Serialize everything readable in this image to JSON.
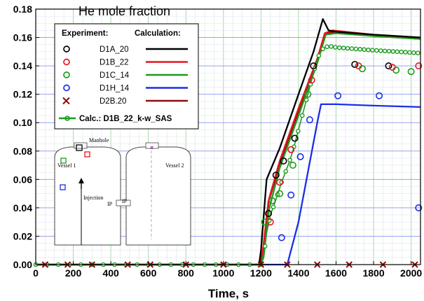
{
  "chart_data": {
    "type": "line",
    "title": "He mole fraction",
    "xlabel": "Time, s",
    "ylabel": "",
    "xlim": [
      0,
      2050
    ],
    "ylim": [
      0,
      0.18
    ],
    "xticks": [
      "0",
      "200",
      "400",
      "600",
      "800",
      "1000",
      "1200",
      "1400",
      "1600",
      "1800",
      "2000"
    ],
    "yticks": [
      "0.00",
      "0.02",
      "0.04",
      "0.06",
      "0.08",
      "0.10",
      "0.12",
      "0.14",
      "0.16",
      "0.18"
    ],
    "grid": true,
    "legend": {
      "placement": "top-left",
      "experiment_header": "Experiment:",
      "calculation_header": "Calculation:",
      "entries": [
        {
          "name": "D1A_20",
          "color": "#000000",
          "marker": "circle"
        },
        {
          "name": "D1B_22",
          "color": "#e8141e",
          "marker": "circle"
        },
        {
          "name": "D1C_14",
          "color": "#1e9a1e",
          "marker": "circle"
        },
        {
          "name": "D1H_14",
          "color": "#1a2ee6",
          "marker": "circle"
        },
        {
          "name": "D2B.20",
          "color": "#8b0d0d",
          "marker": "x"
        }
      ],
      "extra_entry": {
        "name": "Calc.: D1B_22_k-w_SAS",
        "color": "#1e9a1e"
      }
    },
    "series": [
      {
        "name": "D1A_20",
        "kind": "calculation",
        "color": "#000000",
        "points": [
          [
            0,
            0
          ],
          [
            1190,
            0
          ],
          [
            1200,
            0.01
          ],
          [
            1230,
            0.06
          ],
          [
            1300,
            0.082
          ],
          [
            1400,
            0.12
          ],
          [
            1480,
            0.15
          ],
          [
            1530,
            0.173
          ],
          [
            1560,
            0.165
          ],
          [
            1600,
            0.164
          ],
          [
            1800,
            0.162
          ],
          [
            2050,
            0.16
          ]
        ]
      },
      {
        "name": "D1B_22",
        "kind": "calculation",
        "color": "#e8141e",
        "points": [
          [
            0,
            0
          ],
          [
            1195,
            0
          ],
          [
            1210,
            0.01
          ],
          [
            1240,
            0.045
          ],
          [
            1300,
            0.073
          ],
          [
            1400,
            0.11
          ],
          [
            1500,
            0.145
          ],
          [
            1540,
            0.163
          ],
          [
            1580,
            0.165
          ],
          [
            1800,
            0.162
          ],
          [
            2050,
            0.16
          ]
        ]
      },
      {
        "name": "D1C_14",
        "kind": "calculation",
        "color": "#1e9a1e",
        "points": [
          [
            0,
            0
          ],
          [
            1200,
            0
          ],
          [
            1215,
            0.01
          ],
          [
            1245,
            0.04
          ],
          [
            1300,
            0.068
          ],
          [
            1400,
            0.105
          ],
          [
            1500,
            0.142
          ],
          [
            1545,
            0.162
          ],
          [
            1600,
            0.163
          ],
          [
            1800,
            0.161
          ],
          [
            2050,
            0.159
          ]
        ]
      },
      {
        "name": "D1H_14",
        "kind": "calculation",
        "color": "#1a2ee6",
        "points": [
          [
            0,
            0
          ],
          [
            1340,
            0
          ],
          [
            1400,
            0.03
          ],
          [
            1450,
            0.065
          ],
          [
            1500,
            0.1
          ],
          [
            1520,
            0.113
          ],
          [
            1600,
            0.113
          ],
          [
            1800,
            0.112
          ],
          [
            2050,
            0.111
          ]
        ]
      },
      {
        "name": "D2B.20",
        "kind": "calculation",
        "color": "#8b0d0d",
        "points": [
          [
            0,
            0
          ],
          [
            1200,
            0
          ],
          [
            1212,
            0.01
          ],
          [
            1242,
            0.045
          ],
          [
            1300,
            0.07
          ],
          [
            1400,
            0.107
          ],
          [
            1500,
            0.143
          ],
          [
            1545,
            0.163
          ],
          [
            1600,
            0.164
          ],
          [
            1800,
            0.161
          ],
          [
            2050,
            0.159
          ]
        ]
      },
      {
        "name": "D1A_20",
        "kind": "experiment",
        "color": "#000000",
        "marker": "circle",
        "points": [
          [
            1240,
            0.036
          ],
          [
            1280,
            0.063
          ],
          [
            1320,
            0.073
          ],
          [
            1380,
            0.089
          ],
          [
            1480,
            0.14
          ],
          [
            1700,
            0.141
          ],
          [
            1880,
            0.14
          ]
        ]
      },
      {
        "name": "D1B_22",
        "kind": "experiment",
        "color": "#e8141e",
        "marker": "circle",
        "points": [
          [
            1250,
            0.03
          ],
          [
            1300,
            0.058
          ],
          [
            1360,
            0.081
          ],
          [
            1470,
            0.13
          ],
          [
            1720,
            0.14
          ],
          [
            1900,
            0.139
          ],
          [
            2040,
            0.14
          ]
        ]
      },
      {
        "name": "D1C_14",
        "kind": "experiment",
        "color": "#1e9a1e",
        "marker": "circle",
        "points": [
          [
            1220,
            0.03
          ],
          [
            1260,
            0.045
          ],
          [
            1300,
            0.05
          ],
          [
            1370,
            0.07
          ],
          [
            1450,
            0.12
          ],
          [
            1740,
            0.138
          ],
          [
            1920,
            0.137
          ],
          [
            2000,
            0.136
          ]
        ]
      },
      {
        "name": "D1H_14",
        "kind": "experiment",
        "color": "#1a2ee6",
        "marker": "circle",
        "points": [
          [
            1310,
            0.019
          ],
          [
            1360,
            0.049
          ],
          [
            1410,
            0.076
          ],
          [
            1460,
            0.102
          ],
          [
            1610,
            0.119
          ],
          [
            1830,
            0.119
          ],
          [
            2040,
            0.04
          ]
        ]
      },
      {
        "name": "D2B.20",
        "kind": "experiment",
        "color": "#8b0d0d",
        "marker": "x",
        "points": [
          [
            50,
            0
          ],
          [
            170,
            0
          ],
          [
            300,
            0
          ],
          [
            490,
            0
          ],
          [
            610,
            0
          ],
          [
            800,
            0
          ],
          [
            1000,
            0
          ],
          [
            1200,
            0
          ],
          [
            1340,
            0
          ],
          [
            1500,
            0
          ],
          [
            1670,
            0
          ],
          [
            1850,
            0
          ],
          [
            2020,
            0
          ]
        ]
      },
      {
        "name": "Calc.: D1B_22_k-w_SAS",
        "kind": "calculation-markers",
        "color": "#1e9a1e",
        "points": [
          [
            0,
            0
          ],
          [
            1200,
            0
          ],
          [
            1215,
            0.005
          ],
          [
            1230,
            0.022
          ],
          [
            1250,
            0.035
          ],
          [
            1270,
            0.042
          ],
          [
            1290,
            0.05
          ],
          [
            1310,
            0.058
          ],
          [
            1330,
            0.065
          ],
          [
            1350,
            0.072
          ],
          [
            1370,
            0.08
          ],
          [
            1390,
            0.09
          ],
          [
            1410,
            0.1
          ],
          [
            1430,
            0.11
          ],
          [
            1450,
            0.12
          ],
          [
            1470,
            0.13
          ],
          [
            1490,
            0.14
          ],
          [
            1510,
            0.148
          ],
          [
            1530,
            0.152
          ],
          [
            1560,
            0.154
          ],
          [
            1600,
            0.153
          ],
          [
            1800,
            0.151
          ],
          [
            2050,
            0.149
          ]
        ]
      }
    ],
    "inset_labels": {
      "manhole": "Manhole",
      "vessel1": "Vessel 1",
      "vessel2": "Vessel 2",
      "injection": "Injection",
      "ip_left": "IP",
      "ip_right": "IP"
    }
  }
}
